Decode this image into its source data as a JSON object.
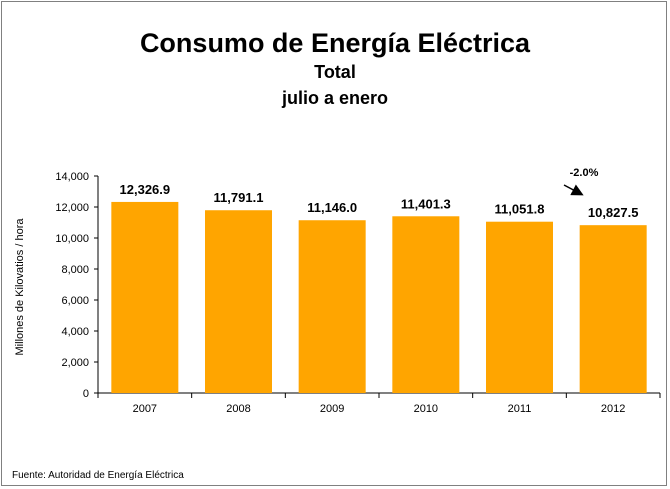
{
  "chart_data": {
    "type": "bar",
    "title": "Consumo de Energía Eléctrica",
    "subtitle": [
      "Total",
      "julio a enero"
    ],
    "categories": [
      "2007",
      "2008",
      "2009",
      "2010",
      "2011",
      "2012"
    ],
    "values": [
      12326.9,
      11791.1,
      11146.0,
      11401.3,
      11051.8,
      10827.5
    ],
    "value_labels": [
      "12,326.9",
      "11,791.1",
      "11,146.0",
      "11,401.3",
      "11,051.8",
      "10,827.5"
    ],
    "xlabel": "",
    "ylabel": "Millones de Kilovatios / hora",
    "ylim": [
      0,
      14000
    ],
    "yticks": [
      0,
      2000,
      4000,
      6000,
      8000,
      10000,
      12000,
      14000
    ],
    "ytick_labels": [
      "0",
      "2,000",
      "4,000",
      "6,000",
      "8,000",
      "10,000",
      "12,000",
      "14,000"
    ],
    "grid": false,
    "bar_color": "#FFA500",
    "annotation": {
      "text": "-2.0%",
      "target_category": "2012"
    }
  },
  "source": "Fuente: Autoridad de Energía Eléctrica"
}
